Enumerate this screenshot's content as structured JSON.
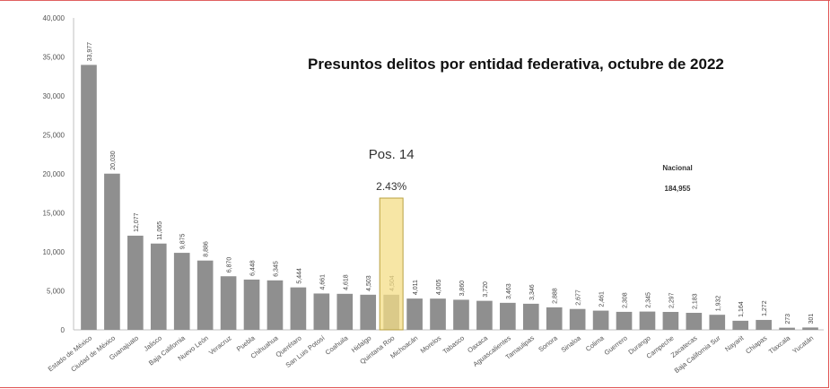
{
  "chart_data": {
    "type": "bar",
    "title": "Presuntos delitos por entidad federativa, octubre de 2022",
    "ylim": [
      0,
      40000
    ],
    "yticks": [
      "0",
      "5,000",
      "10,000",
      "15,000",
      "20,000",
      "25,000",
      "30,000",
      "35,000",
      "40,000"
    ],
    "ytick_values": [
      0,
      5000,
      10000,
      15000,
      20000,
      25000,
      30000,
      35000,
      40000
    ],
    "categories": [
      "Estado de México",
      "Ciudad de México",
      "Guanajuato",
      "Jalisco",
      "Baja California",
      "Nuevo León",
      "Veracruz",
      "Puebla",
      "Chihuahua",
      "Querétaro",
      "San Luis Potosí",
      "Coahuila",
      "Hidalgo",
      "Quintana Roo",
      "Michoacán",
      "Morelos",
      "Tabasco",
      "Oaxaca",
      "Aguascalientes",
      "Tamaulipas",
      "Sonora",
      "Sinaloa",
      "Colima",
      "Guerrero",
      "Durango",
      "Campeche",
      "Zacatecas",
      "Baja California Sur",
      "Nayarit",
      "Chiapas",
      "Tlaxcala",
      "Yucatán"
    ],
    "values": [
      33977,
      20030,
      12077,
      11065,
      9875,
      8886,
      6870,
      6448,
      6345,
      5444,
      4661,
      4618,
      4503,
      4504,
      4011,
      4005,
      3860,
      3720,
      3463,
      3346,
      2888,
      2677,
      2461,
      2308,
      2345,
      2297,
      2183,
      1932,
      1164,
      1272,
      273,
      301
    ],
    "value_labels": [
      "33,977",
      "20,030",
      "12,077",
      "11,065",
      "9,875",
      "8,886",
      "6,870",
      "6,448",
      "6,345",
      "5,444",
      "4,661",
      "4,618",
      "4,503",
      "4,504",
      "4,011",
      "4,005",
      "3,860",
      "3,720",
      "3,463",
      "3,346",
      "2,888",
      "2,677",
      "2,461",
      "2,308",
      "2,345",
      "2,297",
      "2,183",
      "1,932",
      "1,164",
      "1,272",
      "273",
      "301"
    ],
    "highlight_index": 13,
    "highlight_color": "#f4de87",
    "bar_color": "#8f8f8f",
    "annotations": {
      "position_label": "Pos. 14",
      "percent_label": "2.43%",
      "national_label": "Nacional",
      "national_value": "184,955"
    },
    "grid": false
  }
}
